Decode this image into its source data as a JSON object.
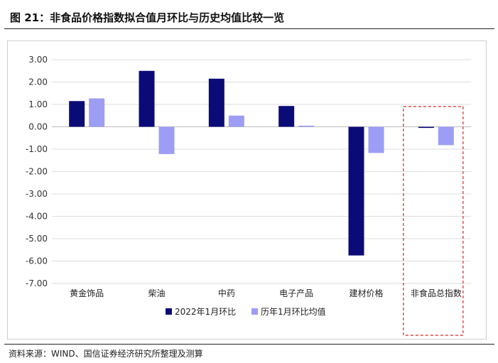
{
  "title": "图 21：非食品价格指数拟合值月环比与历史均值比较一览",
  "source": "资料来源：WIND、国信证券经济研究所整理及测算",
  "chart_data": {
    "type": "bar",
    "categories": [
      "黄金饰品",
      "柴油",
      "中药",
      "电子产品",
      "建材价格",
      "非食品总指数"
    ],
    "series": [
      {
        "name": "2022年1月环比",
        "color": "#0b0b78",
        "values": [
          1.15,
          2.5,
          2.15,
          0.93,
          -5.75,
          -0.05
        ]
      },
      {
        "name": "历年1月环比均值",
        "color": "#9d9df5",
        "values": [
          1.27,
          -1.22,
          0.5,
          0.05,
          -1.17,
          -0.82
        ]
      }
    ],
    "ylim": [
      -7,
      3
    ],
    "yticks": [
      "3.00",
      "2.00",
      "1.00",
      "0.00",
      "-1.00",
      "-2.00",
      "-3.00",
      "-4.00",
      "-5.00",
      "-6.00",
      "-7.00"
    ],
    "grid": true,
    "legend": "bottom",
    "highlight_category": "非食品总指数",
    "highlight_color": "#e02020"
  }
}
